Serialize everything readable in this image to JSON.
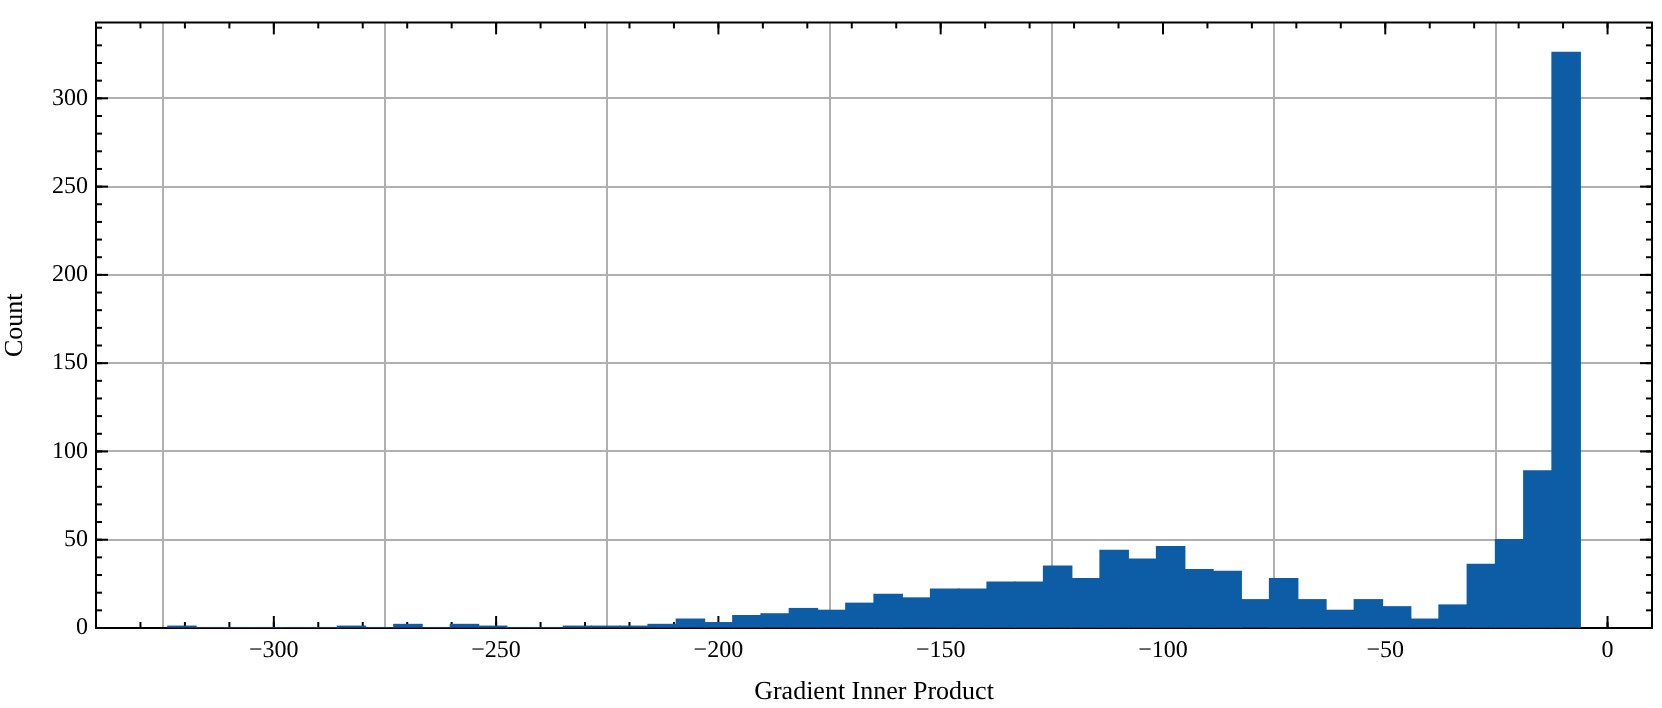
{
  "chart_data": {
    "type": "histogram",
    "xlabel": "Gradient Inner Product",
    "ylabel": "Count",
    "color": "#0c5da5",
    "bins": [
      -323.84,
      -317.49,
      -311.13,
      -304.78,
      -298.42,
      -292.07,
      -285.72,
      -279.36,
      -273.01,
      -266.65,
      -260.3,
      -253.95,
      -247.59,
      -241.24,
      -234.88,
      -228.53,
      -222.18,
      -215.82,
      -209.47,
      -203.11,
      -196.76,
      -190.41,
      -184.05,
      -177.7,
      -171.34,
      -164.99,
      -158.64,
      -152.28,
      -145.93,
      -139.57,
      -133.22,
      -126.87,
      -120.51,
      -114.16,
      -107.8,
      -101.45,
      -95.1,
      -88.74,
      -82.39,
      -76.03,
      -69.68,
      -63.33,
      -56.97,
      -50.62,
      -44.26,
      -37.91,
      -31.56,
      -25.2,
      -18.85,
      -12.49,
      -6.14
    ],
    "values": [
      1,
      0,
      0,
      0,
      0,
      0,
      1,
      0,
      2,
      0,
      2,
      1,
      0,
      0,
      1,
      1,
      1,
      2,
      5,
      3,
      7,
      8,
      11,
      10,
      14,
      19,
      17,
      22,
      22,
      26,
      26,
      35,
      28,
      44,
      39,
      46,
      33,
      32,
      16,
      28,
      16,
      10,
      16,
      12,
      5,
      13,
      36,
      50,
      89,
      326
    ],
    "xlim": [
      -340,
      10
    ],
    "xticks": [
      {
        "value": -300,
        "label": "−300"
      },
      {
        "value": -250,
        "label": "−250"
      },
      {
        "value": -200,
        "label": "−200"
      },
      {
        "value": -150,
        "label": "−150"
      },
      {
        "value": -100,
        "label": "−100"
      },
      {
        "value": -50,
        "label": "−50"
      },
      0
    ],
    "ylim": [
      0,
      343
    ],
    "yticks": [
      0,
      50,
      100,
      150,
      200,
      250,
      300
    ],
    "grid": true,
    "legend": false
  }
}
